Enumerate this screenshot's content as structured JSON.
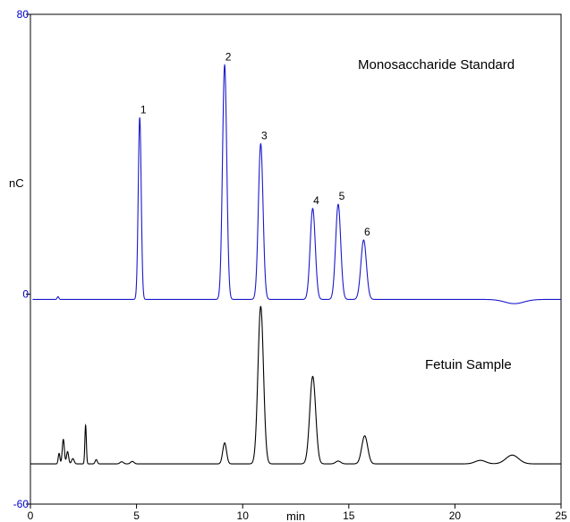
{
  "chart_data": {
    "type": "line",
    "xlabel": "min",
    "ylabel": "nC",
    "xlim": [
      0,
      25
    ],
    "ylim": [
      -60,
      80
    ],
    "x_ticks": [
      {
        "value": 0,
        "label": "0"
      },
      {
        "value": 5,
        "label": "5"
      },
      {
        "value": 10,
        "label": "10"
      },
      {
        "value": 15,
        "label": "15"
      },
      {
        "value": 20,
        "label": "20"
      },
      {
        "value": 25,
        "label": "25"
      }
    ],
    "y_ticks": [
      {
        "value": 80,
        "label": "80",
        "color": "#0000cc"
      },
      {
        "value": 0,
        "label": "0",
        "color": "#0000cc"
      },
      {
        "value": -60,
        "label": "-60",
        "color": "#0000cc"
      }
    ],
    "grid": false,
    "series": [
      {
        "name": "Monosaccharide Standard",
        "color": "#1a1acc",
        "baseline": -1.5,
        "peaks": [
          {
            "x": 1.3,
            "h": 0.8,
            "w": 0.04
          },
          {
            "x": 5.15,
            "h": 52.0,
            "w": 0.07,
            "label": "1"
          },
          {
            "x": 9.15,
            "h": 67.0,
            "w": 0.1,
            "label": "2"
          },
          {
            "x": 10.85,
            "h": 44.5,
            "w": 0.11,
            "label": "3"
          },
          {
            "x": 13.3,
            "h": 26.0,
            "w": 0.12,
            "label": "4"
          },
          {
            "x": 14.5,
            "h": 27.2,
            "w": 0.12,
            "label": "5"
          },
          {
            "x": 15.7,
            "h": 17.0,
            "w": 0.13,
            "label": "6"
          },
          {
            "x": 22.8,
            "h": -1.2,
            "w": 0.45
          }
        ]
      },
      {
        "name": "Fetuin Sample",
        "color": "#000000",
        "baseline": -48.5,
        "peaks": [
          {
            "x": 1.35,
            "h": 3.0,
            "w": 0.04
          },
          {
            "x": 1.55,
            "h": 7.0,
            "w": 0.05
          },
          {
            "x": 1.75,
            "h": 3.5,
            "w": 0.05
          },
          {
            "x": 2.0,
            "h": 1.5,
            "w": 0.06
          },
          {
            "x": 2.6,
            "h": 11.0,
            "w": 0.035
          },
          {
            "x": 3.1,
            "h": 1.2,
            "w": 0.05
          },
          {
            "x": 4.3,
            "h": 0.6,
            "w": 0.08
          },
          {
            "x": 4.8,
            "h": 0.7,
            "w": 0.08
          },
          {
            "x": 9.15,
            "h": 6.0,
            "w": 0.09
          },
          {
            "x": 10.85,
            "h": 45.0,
            "w": 0.13
          },
          {
            "x": 13.3,
            "h": 25.0,
            "w": 0.14
          },
          {
            "x": 14.5,
            "h": 0.8,
            "w": 0.12
          },
          {
            "x": 15.75,
            "h": 8.0,
            "w": 0.14
          },
          {
            "x": 21.2,
            "h": 1.0,
            "w": 0.25
          },
          {
            "x": 22.7,
            "h": 2.5,
            "w": 0.3
          }
        ]
      }
    ]
  }
}
